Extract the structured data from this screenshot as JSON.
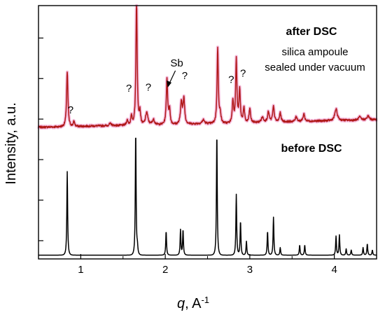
{
  "chart_data": {
    "type": "line",
    "xlabel": "q, A",
    "xlabel_sup": "-1",
    "ylabel": "Intensity, a.u.",
    "xlim": [
      0.5,
      4.5
    ],
    "ylim": [
      0,
      1
    ],
    "x_ticks": [
      1,
      2,
      3,
      4
    ],
    "x_tick_labels": [
      "1",
      "2",
      "3",
      "4"
    ],
    "y_ticks": [
      0.072,
      0.232,
      0.392,
      0.552,
      0.712,
      0.872
    ],
    "grid": false,
    "legend": "none",
    "annotations": {
      "after_label": "after DSC",
      "before_label": "before DSC",
      "note_line1": "silica ampoule",
      "note_line2": "sealed under vacuum",
      "sb_label": "Sb",
      "sb_arrow_x": 2.02,
      "q_marks": [
        {
          "text": "?",
          "x": 0.88,
          "y": 0.575
        },
        {
          "text": "?",
          "x": 1.57,
          "y": 0.66
        },
        {
          "text": "?",
          "x": 1.8,
          "y": 0.665
        },
        {
          "text": "?",
          "x": 2.23,
          "y": 0.71
        },
        {
          "text": "?",
          "x": 2.78,
          "y": 0.695
        },
        {
          "text": "?",
          "x": 2.92,
          "y": 0.72
        }
      ]
    },
    "series": [
      {
        "color": "#b01818",
        "halo_color": "#f2a6d2",
        "baseline": 0.52,
        "baseline_end": 0.55,
        "noise": 0.004,
        "peaks": [
          [
            0.84,
            0.215,
            0.012
          ],
          [
            0.92,
            0.02,
            0.012
          ],
          [
            1.35,
            0.008,
            0.02
          ],
          [
            1.55,
            0.02,
            0.015
          ],
          [
            1.6,
            0.035,
            0.013
          ],
          [
            1.66,
            0.5,
            0.011
          ],
          [
            1.7,
            0.05,
            0.012
          ],
          [
            1.78,
            0.05,
            0.02
          ],
          [
            1.86,
            0.02,
            0.02
          ],
          [
            2.02,
            0.18,
            0.012
          ],
          [
            2.05,
            0.06,
            0.012
          ],
          [
            2.19,
            0.09,
            0.014
          ],
          [
            2.22,
            0.1,
            0.014
          ],
          [
            2.45,
            0.015,
            0.02
          ],
          [
            2.62,
            0.3,
            0.011
          ],
          [
            2.65,
            0.04,
            0.012
          ],
          [
            2.8,
            0.09,
            0.012
          ],
          [
            2.84,
            0.25,
            0.011
          ],
          [
            2.88,
            0.13,
            0.012
          ],
          [
            2.93,
            0.06,
            0.012
          ],
          [
            3.0,
            0.055,
            0.013
          ],
          [
            3.15,
            0.02,
            0.02
          ],
          [
            3.22,
            0.04,
            0.015
          ],
          [
            3.28,
            0.06,
            0.014
          ],
          [
            3.36,
            0.035,
            0.014
          ],
          [
            3.55,
            0.02,
            0.015
          ],
          [
            3.64,
            0.03,
            0.014
          ],
          [
            4.02,
            0.045,
            0.022
          ],
          [
            4.3,
            0.012,
            0.02
          ],
          [
            4.4,
            0.015,
            0.02
          ]
        ]
      },
      {
        "color": "#000000",
        "baseline": 0.015,
        "baseline_end": 0.015,
        "noise": 0.0,
        "peaks": [
          [
            0.84,
            0.33,
            0.007
          ],
          [
            1.65,
            0.49,
            0.007
          ],
          [
            1.67,
            0.03,
            0.008
          ],
          [
            2.01,
            0.095,
            0.007
          ],
          [
            2.18,
            0.1,
            0.007
          ],
          [
            2.21,
            0.1,
            0.007
          ],
          [
            2.61,
            0.485,
            0.007
          ],
          [
            2.84,
            0.24,
            0.007
          ],
          [
            2.89,
            0.135,
            0.007
          ],
          [
            2.96,
            0.055,
            0.007
          ],
          [
            3.21,
            0.095,
            0.007
          ],
          [
            3.28,
            0.15,
            0.007
          ],
          [
            3.36,
            0.03,
            0.007
          ],
          [
            3.59,
            0.04,
            0.007
          ],
          [
            3.65,
            0.04,
            0.007
          ],
          [
            4.02,
            0.075,
            0.007
          ],
          [
            4.06,
            0.08,
            0.007
          ],
          [
            4.14,
            0.025,
            0.007
          ],
          [
            4.2,
            0.02,
            0.007
          ],
          [
            4.34,
            0.03,
            0.007
          ],
          [
            4.39,
            0.045,
            0.007
          ],
          [
            4.45,
            0.02,
            0.007
          ]
        ]
      }
    ]
  }
}
